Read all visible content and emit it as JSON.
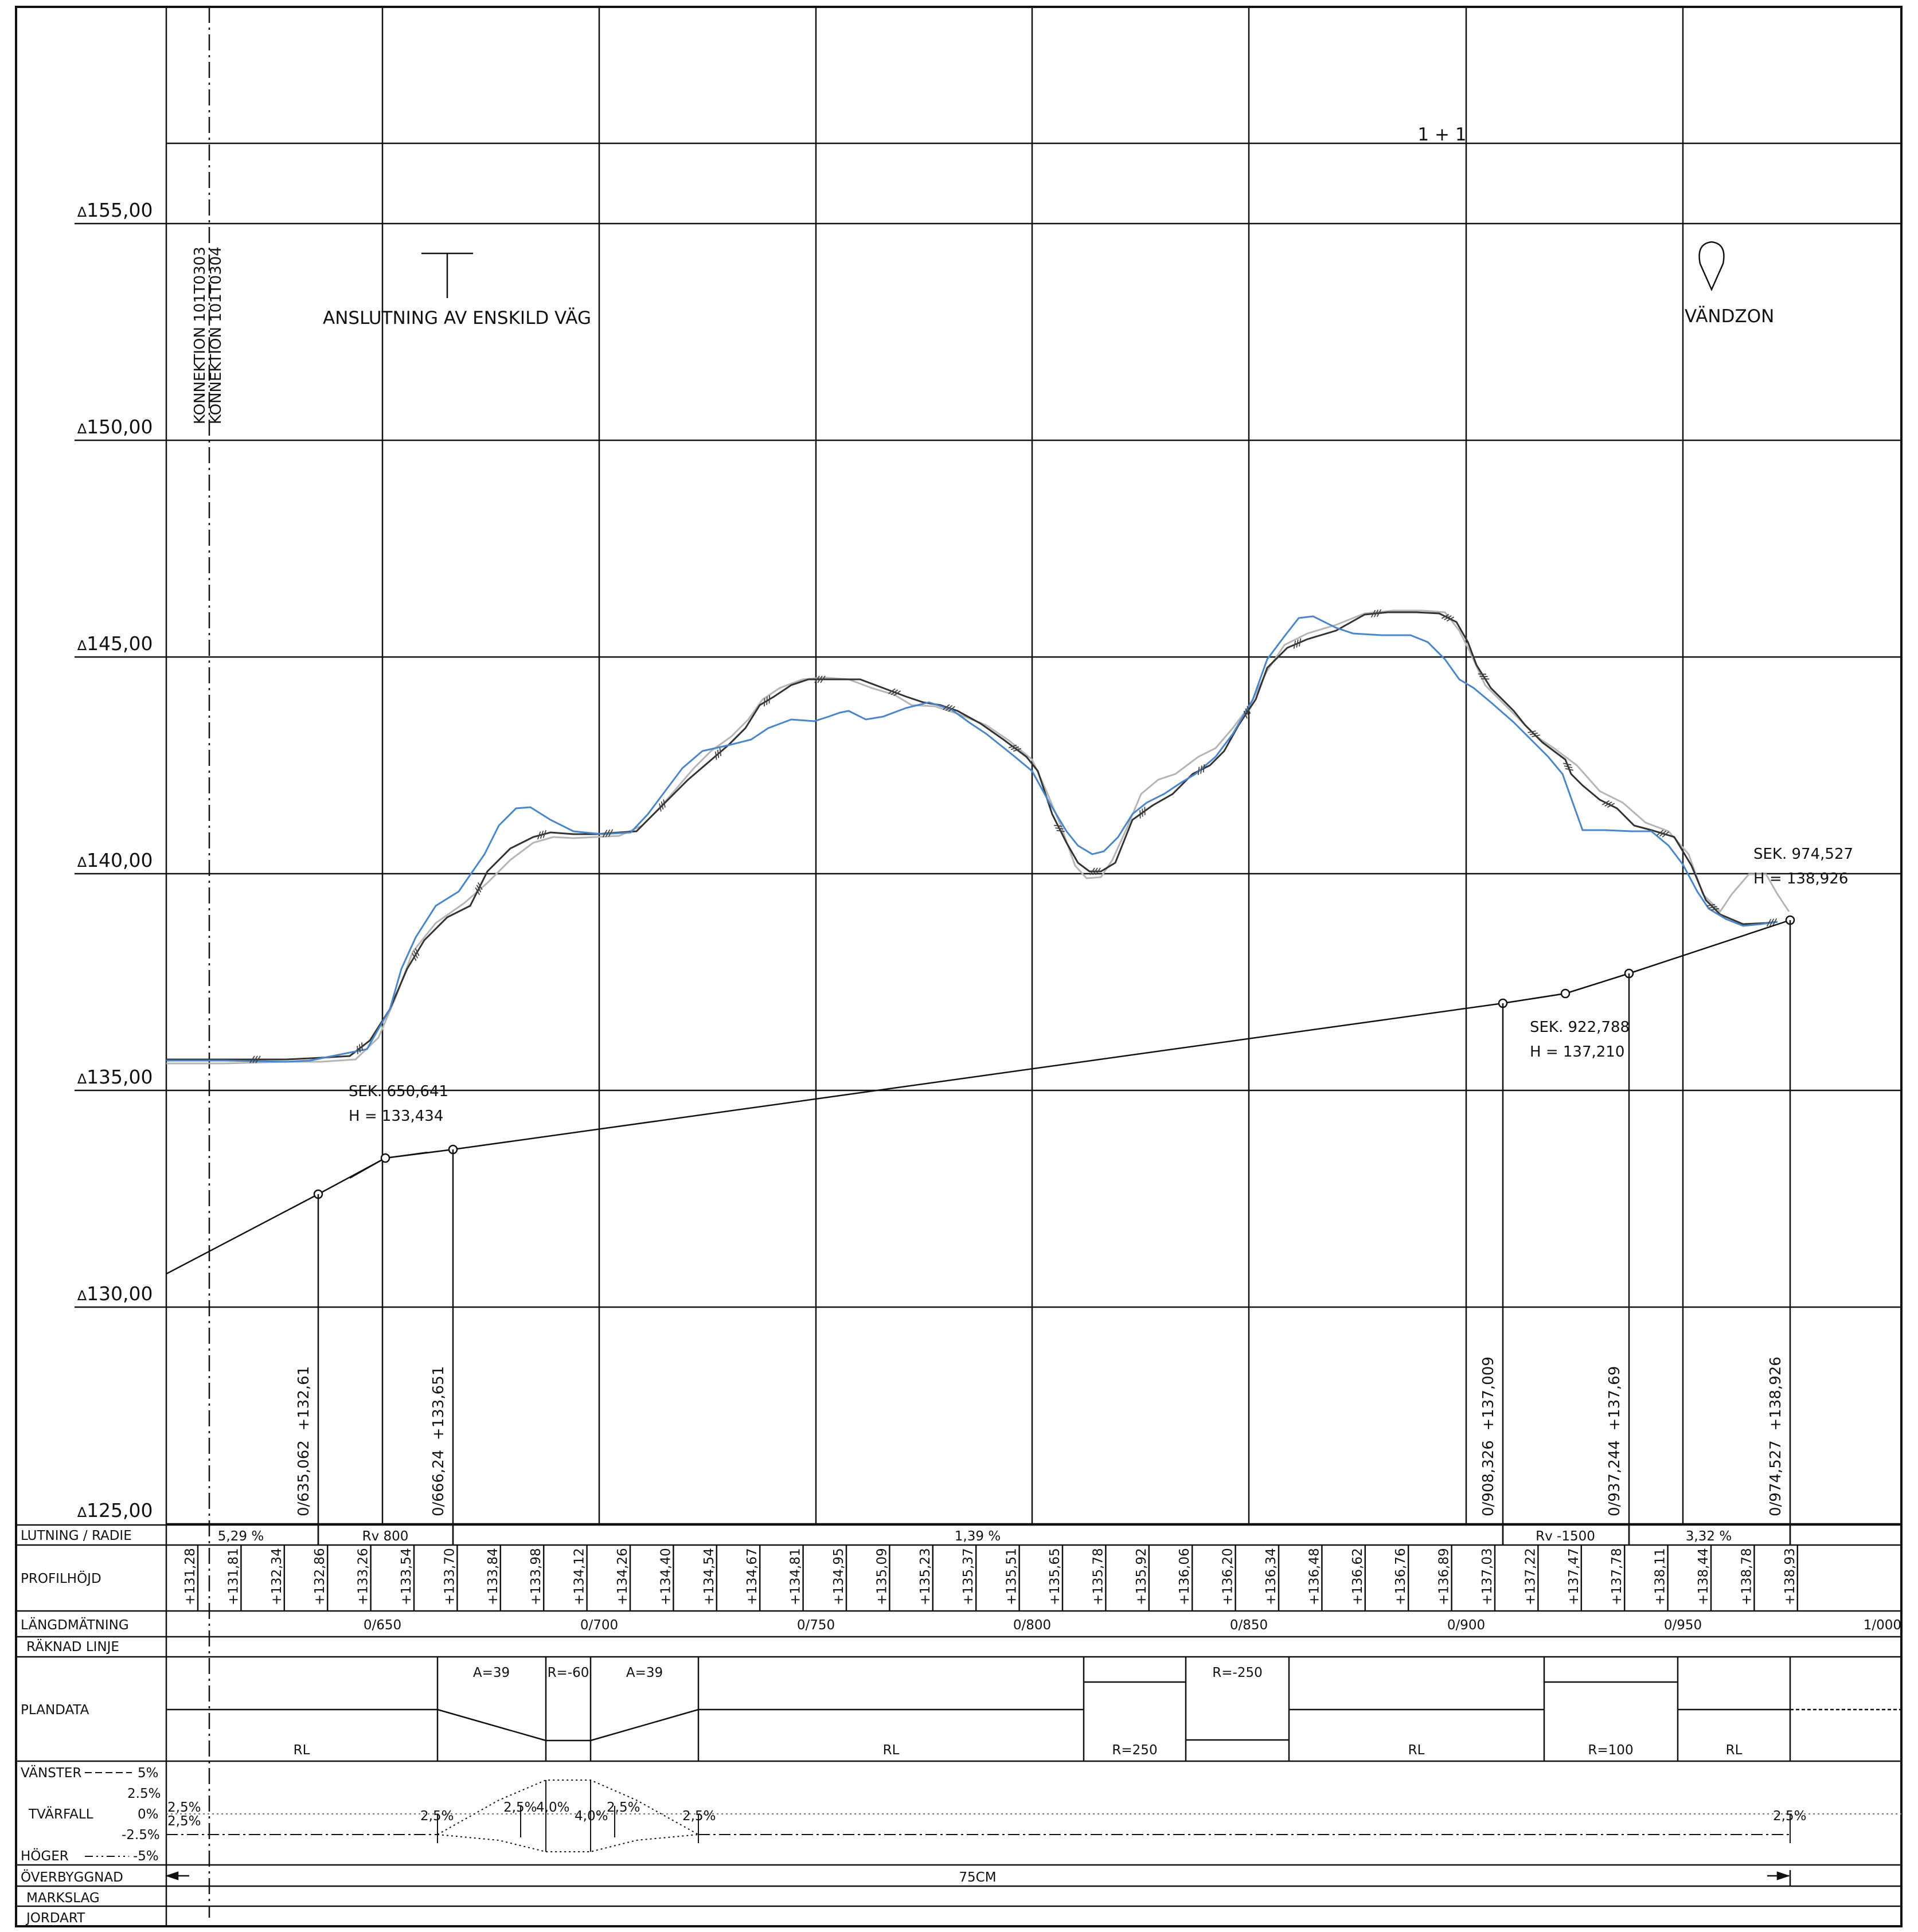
{
  "drawing_type": "longitudinal road profile",
  "sheet_label": "1 + 1",
  "elevation_labels": [
    "155,00",
    "150,00",
    "145,00",
    "140,00",
    "135,00",
    "130,00",
    "125,00"
  ],
  "elevation_marker_symbol": "∆",
  "connection_labels": [
    "KONNEKTION 101T0303",
    "KONNEKTION 101T0304"
  ],
  "annotations": {
    "junction": "ANSLUTNING AV ENSKILD VÄG",
    "turning_zone": "VÄNDZON"
  },
  "vertical_points": [
    {
      "sek_label": "SEK. 650,641",
      "h_label": "H = 133,434"
    },
    {
      "sek_label": "SEK. 922,788",
      "h_label": "H = 137,210"
    },
    {
      "sek_label": "SEK. 974,527",
      "h_label": "H = 138,926"
    }
  ],
  "breakpoint_labels": [
    "0/635,062  +132,61",
    "0/666,24  +133,651",
    "0/908,326  +137,009",
    "0/937,244  +137,69",
    "0/974,527  +138,926"
  ],
  "row_labels": {
    "lutning": "LUTNING / RADIE",
    "profilhojd": "PROFILHÖJD",
    "langdmatning": "LÄNGDMÄTNING",
    "raknad_linje": "RÄKNAD LINJE",
    "plandata": "PLANDATA",
    "vanster": "VÄNSTER",
    "vanster_val": "5%",
    "tvarfall": "TVÄRFALL",
    "hoger": "HÖGER",
    "hoger_val": "-5%",
    "overbyggnad": "ÖVERBYGGNAD",
    "markslag": "MARKSLAG",
    "jordart": "JORDART"
  },
  "tvarfall_scale": [
    "2.5%",
    "0%",
    "-2.5%"
  ],
  "lutning_radie": [
    "5,29 %",
    "Rv 800",
    "1,39 %",
    "Rv -1500",
    "3,32 %"
  ],
  "profilhojd_values": [
    "+131,28",
    "+131,81",
    "+132,34",
    "+132,86",
    "+133,26",
    "+133,54",
    "+133,70",
    "+133,84",
    "+133,98",
    "+134,12",
    "+134,26",
    "+134,40",
    "+134,54",
    "+134,67",
    "+134,81",
    "+134,95",
    "+135,09",
    "+135,23",
    "+135,37",
    "+135,51",
    "+135,65",
    "+135,78",
    "+135,92",
    "+136,06",
    "+136,20",
    "+136,34",
    "+136,48",
    "+136,62",
    "+136,76",
    "+136,89",
    "+137,03",
    "+137,22",
    "+137,47",
    "+137,78",
    "+138,11",
    "+138,44",
    "+138,78",
    "+138,93"
  ],
  "chainage_labels": [
    "0/650",
    "0/700",
    "0/750",
    "0/800",
    "0/850",
    "0/900",
    "0/950",
    "1/000"
  ],
  "plandata_labels": [
    "A=39",
    "R=-60",
    "A=39",
    "R=-250",
    "RL",
    "RL",
    "R=250",
    "RL",
    "R=100",
    "RL"
  ],
  "tvarfall_labels": [
    "2,5%",
    "2,5%",
    "2,5%",
    "2,5%",
    "4,0%",
    "4,0%",
    "2,5%",
    "2,5%",
    "2,5%"
  ],
  "overbyggnad_value": "75CM",
  "colors": {
    "ground_blue": "#4a86c8",
    "ground_dark": "#333333",
    "ground_grey": "#b0b0b0",
    "line": "#111111"
  }
}
